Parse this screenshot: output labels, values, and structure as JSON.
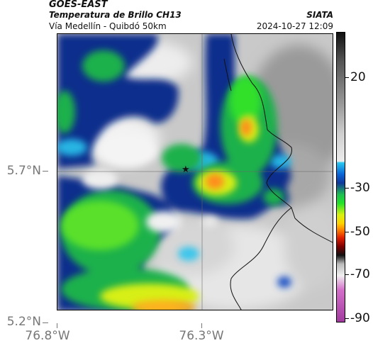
{
  "header": {
    "satellite": "GOES-EAST",
    "product_title": "Temperatura de Brillo CH13",
    "subtitle": "Vía Medellín - Quibdó 50km",
    "organization": "SIATA",
    "datetime": "2024-10-27 12:09"
  },
  "map": {
    "lat_labels": [
      "5.7°N",
      "5.2°N"
    ],
    "lon_labels": [
      "76.8°W",
      "76.3°W"
    ],
    "marker_icon": "star-icon"
  },
  "colorbar": {
    "labels": [
      "20",
      "-30",
      "-50",
      "-70",
      "-90"
    ]
  }
}
